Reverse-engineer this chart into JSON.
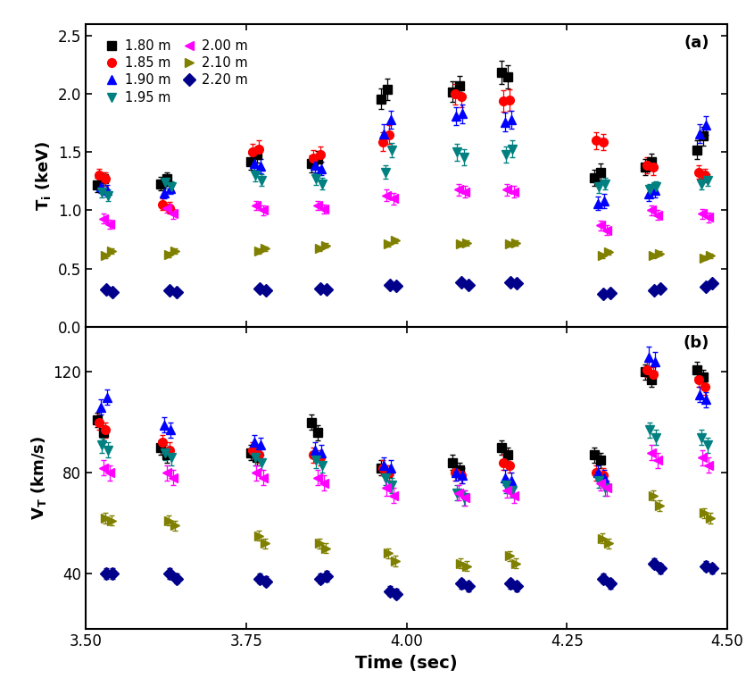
{
  "title_a": "(a)",
  "title_b": "(b)",
  "xlabel": "Time (sec)",
  "ylabel_a": "T$_i$ (keV)",
  "ylabel_b": "V$_T$ (km/s)",
  "xlim": [
    3.5,
    4.5
  ],
  "ylim_a": [
    0.0,
    2.6
  ],
  "ylim_b": [
    18,
    138
  ],
  "yticks_a": [
    0.0,
    0.5,
    1.0,
    1.5,
    2.0,
    2.5
  ],
  "yticks_b": [
    40,
    80,
    120
  ],
  "xticks": [
    3.5,
    3.75,
    4.0,
    4.25,
    4.5
  ],
  "series": {
    "r180": {
      "color": "black",
      "marker": "s",
      "label": "1.80 m",
      "Ti": {
        "x": [
          3.518,
          3.528,
          3.617,
          3.627,
          3.757,
          3.767,
          3.852,
          3.862,
          3.96,
          3.97,
          4.072,
          4.082,
          4.148,
          4.158,
          4.293,
          4.303,
          4.372,
          4.382,
          4.452,
          4.462
        ],
        "y": [
          1.22,
          1.27,
          1.23,
          1.27,
          1.42,
          1.48,
          1.4,
          1.44,
          1.96,
          2.04,
          2.02,
          2.07,
          2.19,
          2.15,
          1.28,
          1.33,
          1.37,
          1.42,
          1.52,
          1.64
        ],
        "yerr": [
          0.06,
          0.06,
          0.06,
          0.06,
          0.07,
          0.07,
          0.07,
          0.07,
          0.09,
          0.09,
          0.09,
          0.09,
          0.1,
          0.1,
          0.07,
          0.07,
          0.07,
          0.07,
          0.08,
          0.08
        ]
      },
      "Vt": {
        "x": [
          3.518,
          3.528,
          3.617,
          3.627,
          3.757,
          3.767,
          3.852,
          3.862,
          3.96,
          3.97,
          4.072,
          4.082,
          4.148,
          4.158,
          4.293,
          4.303,
          4.372,
          4.382,
          4.452,
          4.462
        ],
        "y": [
          101,
          96,
          90,
          87,
          88,
          86,
          100,
          96,
          82,
          80,
          84,
          81,
          90,
          87,
          87,
          85,
          120,
          117,
          121,
          118
        ],
        "yerr": [
          3,
          3,
          3,
          3,
          3,
          3,
          3,
          3,
          3,
          3,
          3,
          3,
          3,
          3,
          3,
          3,
          3,
          3,
          3,
          3
        ]
      }
    },
    "r185": {
      "color": "#ff0000",
      "marker": "o",
      "label": "1.85 m",
      "Ti": {
        "x": [
          3.521,
          3.531,
          3.62,
          3.63,
          3.76,
          3.77,
          3.855,
          3.865,
          3.963,
          3.973,
          4.075,
          4.085,
          4.151,
          4.161,
          4.296,
          4.306,
          4.375,
          4.385,
          4.455,
          4.465
        ],
        "y": [
          1.3,
          1.27,
          1.05,
          1.02,
          1.5,
          1.53,
          1.45,
          1.48,
          1.59,
          1.65,
          2.0,
          1.98,
          1.94,
          1.95,
          1.6,
          1.59,
          1.39,
          1.37,
          1.33,
          1.3
        ],
        "yerr": [
          0.06,
          0.06,
          0.05,
          0.05,
          0.07,
          0.07,
          0.07,
          0.07,
          0.08,
          0.08,
          0.09,
          0.09,
          0.09,
          0.09,
          0.07,
          0.07,
          0.07,
          0.07,
          0.06,
          0.06
        ]
      },
      "Vt": {
        "x": [
          3.521,
          3.531,
          3.62,
          3.63,
          3.76,
          3.77,
          3.855,
          3.865,
          3.963,
          3.973,
          4.075,
          4.085,
          4.151,
          4.161,
          4.296,
          4.306,
          4.375,
          4.385,
          4.455,
          4.465
        ],
        "y": [
          100,
          97,
          92,
          89,
          89,
          87,
          87,
          86,
          82,
          80,
          80,
          79,
          84,
          83,
          80,
          79,
          121,
          119,
          117,
          114
        ],
        "yerr": [
          3,
          3,
          3,
          3,
          3,
          3,
          3,
          3,
          3,
          3,
          3,
          3,
          3,
          3,
          3,
          3,
          3,
          3,
          3,
          3
        ]
      }
    },
    "r190": {
      "color": "#0000ff",
      "marker": "^",
      "label": "1.90 m",
      "Ti": {
        "x": [
          3.523,
          3.533,
          3.622,
          3.632,
          3.762,
          3.772,
          3.857,
          3.867,
          3.965,
          3.975,
          4.077,
          4.087,
          4.153,
          4.163,
          4.298,
          4.308,
          4.377,
          4.387,
          4.457,
          4.467
        ],
        "y": [
          1.2,
          1.17,
          1.15,
          1.19,
          1.4,
          1.38,
          1.39,
          1.36,
          1.66,
          1.78,
          1.81,
          1.83,
          1.76,
          1.78,
          1.06,
          1.08,
          1.14,
          1.17,
          1.66,
          1.73
        ],
        "yerr": [
          0.05,
          0.05,
          0.05,
          0.05,
          0.06,
          0.06,
          0.06,
          0.06,
          0.08,
          0.08,
          0.08,
          0.08,
          0.08,
          0.08,
          0.06,
          0.06,
          0.06,
          0.06,
          0.08,
          0.08
        ]
      },
      "Vt": {
        "x": [
          3.523,
          3.533,
          3.622,
          3.632,
          3.762,
          3.772,
          3.857,
          3.867,
          3.965,
          3.975,
          4.077,
          4.087,
          4.153,
          4.163,
          4.298,
          4.308,
          4.377,
          4.387,
          4.457,
          4.467
        ],
        "y": [
          106,
          110,
          99,
          97,
          92,
          91,
          89,
          88,
          83,
          82,
          80,
          79,
          78,
          77,
          80,
          78,
          126,
          124,
          111,
          109
        ],
        "yerr": [
          3,
          3,
          3,
          3,
          3,
          3,
          3,
          3,
          3,
          3,
          3,
          3,
          3,
          3,
          3,
          3,
          4,
          4,
          3,
          3
        ]
      }
    },
    "r195": {
      "color": "#008080",
      "marker": "v",
      "label": "1.95 m",
      "Ti": {
        "x": [
          3.525,
          3.535,
          3.624,
          3.634,
          3.764,
          3.774,
          3.859,
          3.869,
          3.967,
          3.977,
          4.079,
          4.089,
          4.155,
          4.165,
          4.3,
          4.31,
          4.379,
          4.389,
          4.459,
          4.469
        ],
        "y": [
          1.16,
          1.13,
          1.24,
          1.2,
          1.3,
          1.26,
          1.27,
          1.23,
          1.33,
          1.52,
          1.5,
          1.46,
          1.48,
          1.53,
          1.2,
          1.23,
          1.18,
          1.2,
          1.23,
          1.26
        ],
        "yerr": [
          0.05,
          0.05,
          0.05,
          0.05,
          0.05,
          0.05,
          0.05,
          0.05,
          0.06,
          0.06,
          0.07,
          0.07,
          0.07,
          0.07,
          0.05,
          0.05,
          0.05,
          0.05,
          0.05,
          0.05
        ]
      },
      "Vt": {
        "x": [
          3.525,
          3.535,
          3.624,
          3.634,
          3.764,
          3.774,
          3.859,
          3.869,
          3.967,
          3.977,
          4.079,
          4.089,
          4.155,
          4.165,
          4.3,
          4.31,
          4.379,
          4.389,
          4.459,
          4.469
        ],
        "y": [
          91,
          89,
          88,
          86,
          86,
          84,
          85,
          83,
          78,
          75,
          72,
          70,
          75,
          73,
          77,
          74,
          97,
          94,
          94,
          91
        ],
        "yerr": [
          3,
          3,
          3,
          3,
          3,
          3,
          3,
          3,
          3,
          3,
          3,
          3,
          3,
          3,
          3,
          3,
          3,
          3,
          3,
          3
        ]
      }
    },
    "r200": {
      "color": "#ff00ff",
      "marker": "<",
      "label": "2.00 m",
      "Ti": {
        "x": [
          3.527,
          3.537,
          3.626,
          3.636,
          3.766,
          3.776,
          3.861,
          3.871,
          3.969,
          3.979,
          4.081,
          4.091,
          4.157,
          4.167,
          4.302,
          4.312,
          4.381,
          4.391,
          4.461,
          4.471
        ],
        "y": [
          0.93,
          0.88,
          1.02,
          0.97,
          1.04,
          1.0,
          1.04,
          1.01,
          1.13,
          1.1,
          1.18,
          1.16,
          1.18,
          1.16,
          0.87,
          0.83,
          1.0,
          0.96,
          0.97,
          0.94
        ],
        "yerr": [
          0.04,
          0.04,
          0.04,
          0.04,
          0.04,
          0.04,
          0.04,
          0.04,
          0.05,
          0.05,
          0.05,
          0.05,
          0.05,
          0.05,
          0.04,
          0.04,
          0.04,
          0.04,
          0.04,
          0.04
        ]
      },
      "Vt": {
        "x": [
          3.527,
          3.537,
          3.626,
          3.636,
          3.766,
          3.776,
          3.861,
          3.871,
          3.969,
          3.979,
          4.081,
          4.091,
          4.157,
          4.167,
          4.302,
          4.312,
          4.381,
          4.391,
          4.461,
          4.471
        ],
        "y": [
          82,
          80,
          80,
          78,
          80,
          78,
          78,
          76,
          74,
          71,
          72,
          70,
          73,
          71,
          76,
          74,
          88,
          85,
          86,
          83
        ],
        "yerr": [
          3,
          3,
          3,
          3,
          3,
          3,
          3,
          3,
          3,
          3,
          3,
          3,
          3,
          3,
          3,
          3,
          3,
          3,
          3,
          3
        ]
      }
    },
    "r210": {
      "color": "#808000",
      "marker": ">",
      "label": "2.10 m",
      "Ti": {
        "x": [
          3.53,
          3.54,
          3.629,
          3.639,
          3.769,
          3.779,
          3.864,
          3.874,
          3.972,
          3.982,
          4.084,
          4.094,
          4.16,
          4.17,
          4.305,
          4.315,
          4.384,
          4.394,
          4.464,
          4.474
        ],
        "y": [
          0.61,
          0.65,
          0.62,
          0.65,
          0.65,
          0.67,
          0.67,
          0.7,
          0.71,
          0.74,
          0.71,
          0.72,
          0.71,
          0.72,
          0.61,
          0.64,
          0.61,
          0.63,
          0.59,
          0.61
        ],
        "yerr": [
          0.02,
          0.02,
          0.02,
          0.02,
          0.02,
          0.02,
          0.02,
          0.02,
          0.02,
          0.02,
          0.02,
          0.02,
          0.02,
          0.02,
          0.02,
          0.02,
          0.02,
          0.02,
          0.02,
          0.02
        ]
      },
      "Vt": {
        "x": [
          3.53,
          3.54,
          3.629,
          3.639,
          3.769,
          3.779,
          3.864,
          3.874,
          3.972,
          3.982,
          4.084,
          4.094,
          4.16,
          4.17,
          4.305,
          4.315,
          4.384,
          4.394,
          4.464,
          4.474
        ],
        "y": [
          62,
          61,
          61,
          59,
          55,
          52,
          52,
          50,
          48,
          45,
          44,
          43,
          47,
          44,
          54,
          52,
          71,
          67,
          64,
          62
        ],
        "yerr": [
          2,
          2,
          2,
          2,
          2,
          2,
          2,
          2,
          2,
          2,
          2,
          2,
          2,
          2,
          2,
          2,
          2,
          2,
          2,
          2
        ]
      }
    },
    "r220": {
      "color": "#00008b",
      "marker": "D",
      "label": "2.20 m",
      "Ti": {
        "x": [
          3.532,
          3.542,
          3.631,
          3.641,
          3.771,
          3.781,
          3.866,
          3.876,
          3.974,
          3.984,
          4.086,
          4.096,
          4.162,
          4.172,
          4.307,
          4.317,
          4.386,
          4.396,
          4.466,
          4.476
        ],
        "y": [
          0.32,
          0.3,
          0.31,
          0.3,
          0.33,
          0.31,
          0.33,
          0.32,
          0.36,
          0.35,
          0.38,
          0.36,
          0.38,
          0.37,
          0.28,
          0.29,
          0.31,
          0.33,
          0.34,
          0.37
        ],
        "yerr": [
          0.01,
          0.01,
          0.01,
          0.01,
          0.01,
          0.01,
          0.01,
          0.01,
          0.01,
          0.01,
          0.01,
          0.01,
          0.01,
          0.01,
          0.01,
          0.01,
          0.01,
          0.01,
          0.01,
          0.01
        ]
      },
      "Vt": {
        "x": [
          3.532,
          3.542,
          3.631,
          3.641,
          3.771,
          3.781,
          3.866,
          3.876,
          3.974,
          3.984,
          4.086,
          4.096,
          4.162,
          4.172,
          4.307,
          4.317,
          4.386,
          4.396,
          4.466,
          4.476
        ],
        "y": [
          40,
          40,
          40,
          38,
          38,
          37,
          38,
          39,
          33,
          32,
          36,
          35,
          36,
          35,
          38,
          36,
          44,
          42,
          43,
          42
        ],
        "yerr": [
          2,
          2,
          2,
          2,
          2,
          2,
          2,
          2,
          2,
          2,
          2,
          2,
          2,
          2,
          2,
          2,
          2,
          2,
          2,
          2
        ]
      }
    }
  }
}
